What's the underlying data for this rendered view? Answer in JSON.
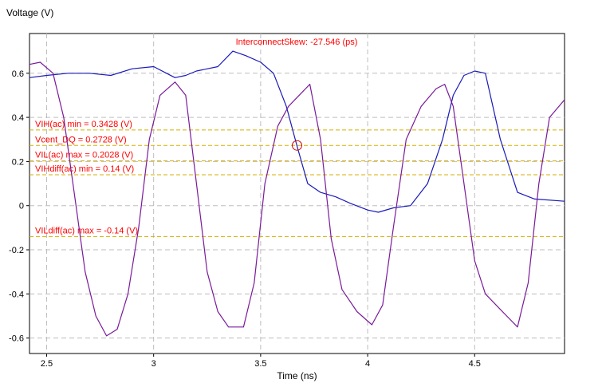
{
  "chart_data": {
    "type": "line",
    "ylabel": "Voltage (V)",
    "xlabel": "Time (ns)",
    "xlim": [
      2.42,
      4.92
    ],
    "ylim": [
      -0.67,
      0.78
    ],
    "xticks": [
      2.5,
      3,
      3.5,
      4,
      4.5
    ],
    "xtick_labels": [
      "2.5",
      "3",
      "3.5",
      "4",
      "4.5"
    ],
    "yticks": [
      -0.6,
      -0.4,
      -0.2,
      0,
      0.2,
      0.4,
      0.6
    ],
    "ytick_labels": [
      "-0.6",
      "-0.4",
      "-0.2",
      "0",
      "0.2",
      "0.4",
      "0.6"
    ],
    "grid": true,
    "annotation": {
      "text": "InterconnectSkew: -27.546 (ps)",
      "color": "#ff0000"
    },
    "marker": {
      "x": 3.67,
      "y": 0.273,
      "color": "#cc0000"
    },
    "threshold_color": "#d4b000",
    "thresholds": [
      {
        "label": "VIH(ac) min = 0.3428 (V)",
        "value": 0.3428
      },
      {
        "label": "Vcent_DQ = 0.2728 (V)",
        "value": 0.2728
      },
      {
        "label": "VIL(ac) max = 0.2028 (V)",
        "value": 0.2028
      },
      {
        "label": "VIHdiff(ac) min = 0.14 (V)",
        "value": 0.14
      },
      {
        "label": "VILdiff(ac) max = -0.14 (V)",
        "value": -0.14
      }
    ],
    "series": [
      {
        "color": "#1a1ab8",
        "points": [
          [
            2.42,
            0.58
          ],
          [
            2.5,
            0.59
          ],
          [
            2.6,
            0.6
          ],
          [
            2.7,
            0.6
          ],
          [
            2.8,
            0.59
          ],
          [
            2.9,
            0.62
          ],
          [
            3.0,
            0.63
          ],
          [
            3.06,
            0.6
          ],
          [
            3.1,
            0.58
          ],
          [
            3.15,
            0.59
          ],
          [
            3.2,
            0.61
          ],
          [
            3.3,
            0.63
          ],
          [
            3.37,
            0.7
          ],
          [
            3.43,
            0.68
          ],
          [
            3.5,
            0.65
          ],
          [
            3.56,
            0.6
          ],
          [
            3.62,
            0.45
          ],
          [
            3.67,
            0.27
          ],
          [
            3.72,
            0.1
          ],
          [
            3.78,
            0.06
          ],
          [
            3.85,
            0.04
          ],
          [
            3.92,
            0.01
          ],
          [
            4.0,
            -0.02
          ],
          [
            4.05,
            -0.03
          ],
          [
            4.12,
            -0.01
          ],
          [
            4.2,
            0.0
          ],
          [
            4.28,
            0.1
          ],
          [
            4.35,
            0.3
          ],
          [
            4.4,
            0.5
          ],
          [
            4.45,
            0.59
          ],
          [
            4.5,
            0.61
          ],
          [
            4.55,
            0.6
          ],
          [
            4.62,
            0.3
          ],
          [
            4.7,
            0.06
          ],
          [
            4.78,
            0.03
          ],
          [
            4.92,
            0.02
          ]
        ]
      },
      {
        "color": "#7a1a9a",
        "points": [
          [
            2.42,
            0.64
          ],
          [
            2.47,
            0.65
          ],
          [
            2.53,
            0.6
          ],
          [
            2.58,
            0.4
          ],
          [
            2.63,
            0.05
          ],
          [
            2.68,
            -0.3
          ],
          [
            2.73,
            -0.5
          ],
          [
            2.78,
            -0.59
          ],
          [
            2.83,
            -0.56
          ],
          [
            2.88,
            -0.4
          ],
          [
            2.93,
            -0.1
          ],
          [
            2.98,
            0.3
          ],
          [
            3.03,
            0.5
          ],
          [
            3.1,
            0.56
          ],
          [
            3.15,
            0.5
          ],
          [
            3.2,
            0.1
          ],
          [
            3.25,
            -0.3
          ],
          [
            3.3,
            -0.48
          ],
          [
            3.35,
            -0.55
          ],
          [
            3.42,
            -0.55
          ],
          [
            3.47,
            -0.35
          ],
          [
            3.52,
            0.1
          ],
          [
            3.58,
            0.36
          ],
          [
            3.63,
            0.45
          ],
          [
            3.68,
            0.5
          ],
          [
            3.73,
            0.55
          ],
          [
            3.78,
            0.3
          ],
          [
            3.83,
            -0.15
          ],
          [
            3.88,
            -0.38
          ],
          [
            3.95,
            -0.48
          ],
          [
            4.02,
            -0.54
          ],
          [
            4.07,
            -0.45
          ],
          [
            4.12,
            -0.1
          ],
          [
            4.18,
            0.3
          ],
          [
            4.25,
            0.45
          ],
          [
            4.32,
            0.53
          ],
          [
            4.36,
            0.55
          ],
          [
            4.4,
            0.45
          ],
          [
            4.45,
            0.1
          ],
          [
            4.5,
            -0.25
          ],
          [
            4.55,
            -0.4
          ],
          [
            4.6,
            -0.45
          ],
          [
            4.65,
            -0.5
          ],
          [
            4.7,
            -0.55
          ],
          [
            4.75,
            -0.35
          ],
          [
            4.8,
            0.1
          ],
          [
            4.85,
            0.4
          ],
          [
            4.92,
            0.48
          ]
        ]
      }
    ]
  }
}
